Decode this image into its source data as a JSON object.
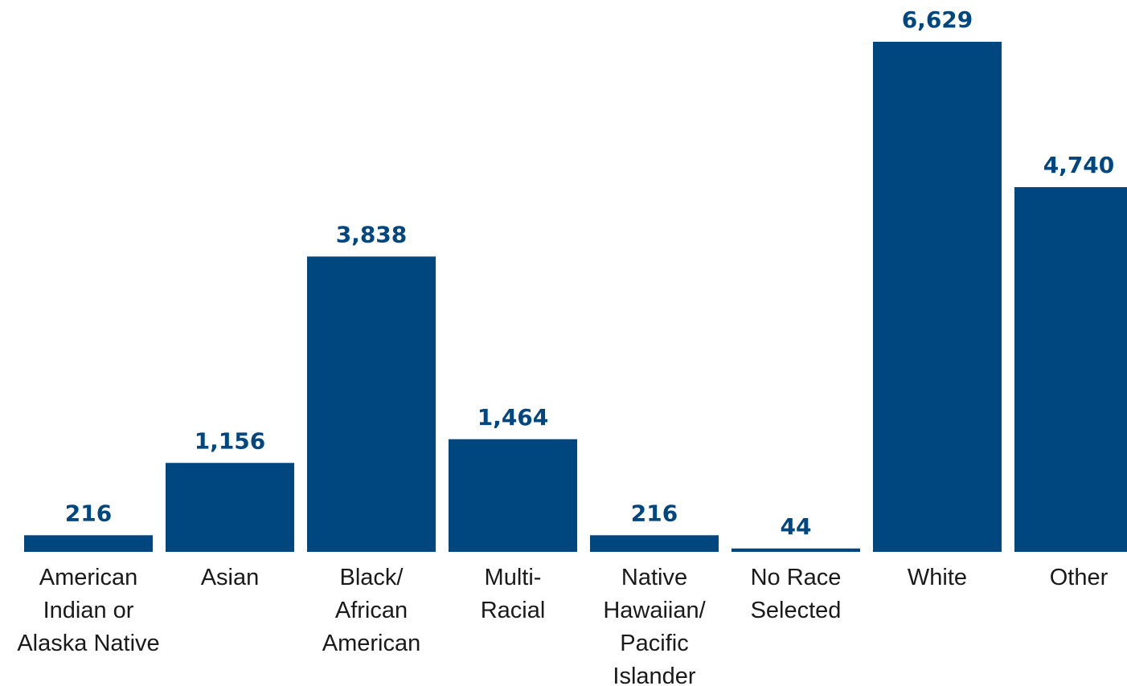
{
  "chart_data": {
    "type": "bar",
    "categories": [
      [
        "American",
        "Indian or",
        "Alaska Native"
      ],
      [
        "Asian"
      ],
      [
        "Black/",
        "African",
        "American"
      ],
      [
        "Multi-",
        "Racial"
      ],
      [
        "Native",
        "Hawaiian/",
        "Pacific",
        "Islander"
      ],
      [
        "No Race",
        "Selected"
      ],
      [
        "White"
      ],
      [
        "Other"
      ]
    ],
    "values": [
      216,
      1156,
      3838,
      1464,
      216,
      44,
      6629,
      4740
    ],
    "value_labels": [
      "216",
      "1,156",
      "3,838",
      "1,464",
      "216",
      "44",
      "6,629",
      "4,740"
    ],
    "title": "",
    "xlabel": "",
    "ylabel": "",
    "ylim": [
      0,
      6629
    ],
    "grid": false,
    "legend": "none",
    "bar_color": "#00467f",
    "value_label_color": "#00467f"
  }
}
